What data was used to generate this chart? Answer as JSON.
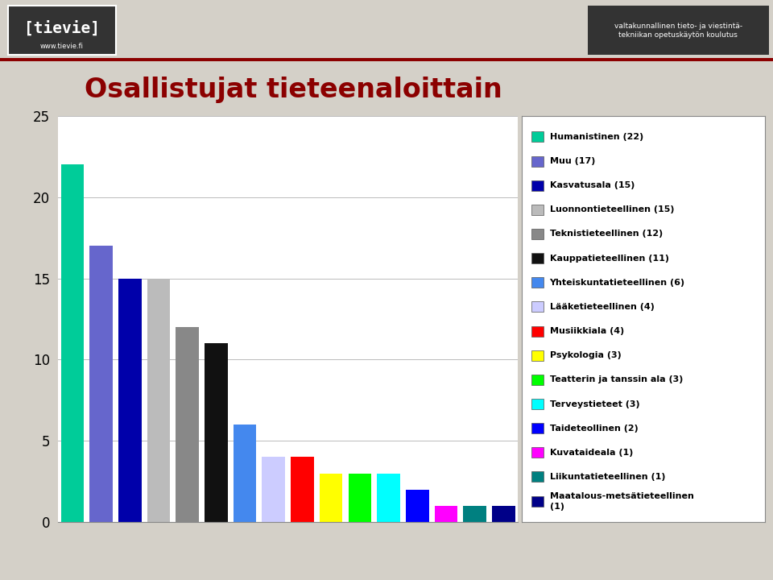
{
  "title": "Osallistujat tieteenaloittain",
  "title_color": "#8B0000",
  "background_color": "#d4d0c8",
  "chart_bg": "#ffffff",
  "values": [
    22,
    17,
    15,
    15,
    12,
    11,
    6,
    4,
    4,
    3,
    3,
    3,
    2,
    1,
    1,
    1
  ],
  "bar_colors": [
    "#00CC99",
    "#6666CC",
    "#0000AA",
    "#BBBBBB",
    "#888888",
    "#111111",
    "#4488EE",
    "#CCCCFF",
    "#FF0000",
    "#FFFF00",
    "#00FF00",
    "#00FFFF",
    "#0000FF",
    "#FF00FF",
    "#008080",
    "#000088"
  ],
  "legend_labels": [
    "Humanistinen (22)",
    "Muu (17)",
    "Kasvatusala (15)",
    "Luonnontieteellinen (15)",
    "Teknistieteellinen (12)",
    "Kauppatieteellinen (11)",
    "Yhteiskuntatieteellinen (6)",
    "Lääketieteellinen (4)",
    "Musiikkiala (4)",
    "Psykologia (3)",
    "Teatterin ja tanssin ala (3)",
    "Terveystieteet (3)",
    "Taideteollinen (2)",
    "Kuvataideala (1)",
    "Liikuntatieteellinen (1)",
    "Maatalous-metsätieteellinen\n(1)"
  ],
  "ylim": [
    0,
    25
  ],
  "yticks": [
    0,
    5,
    10,
    15,
    20,
    25
  ],
  "grid_color": "#bbbbbb",
  "header_bg": "#d4d0c8",
  "header_line_color": "#8B0000",
  "logo_box_color": "#333333",
  "logo_text_color": "#ffffff",
  "right_header_bg": "#333333",
  "right_header_text": "valtakunnallinen tieto- ja viestintä-\ntekniikan opetuskäytön koulutus"
}
